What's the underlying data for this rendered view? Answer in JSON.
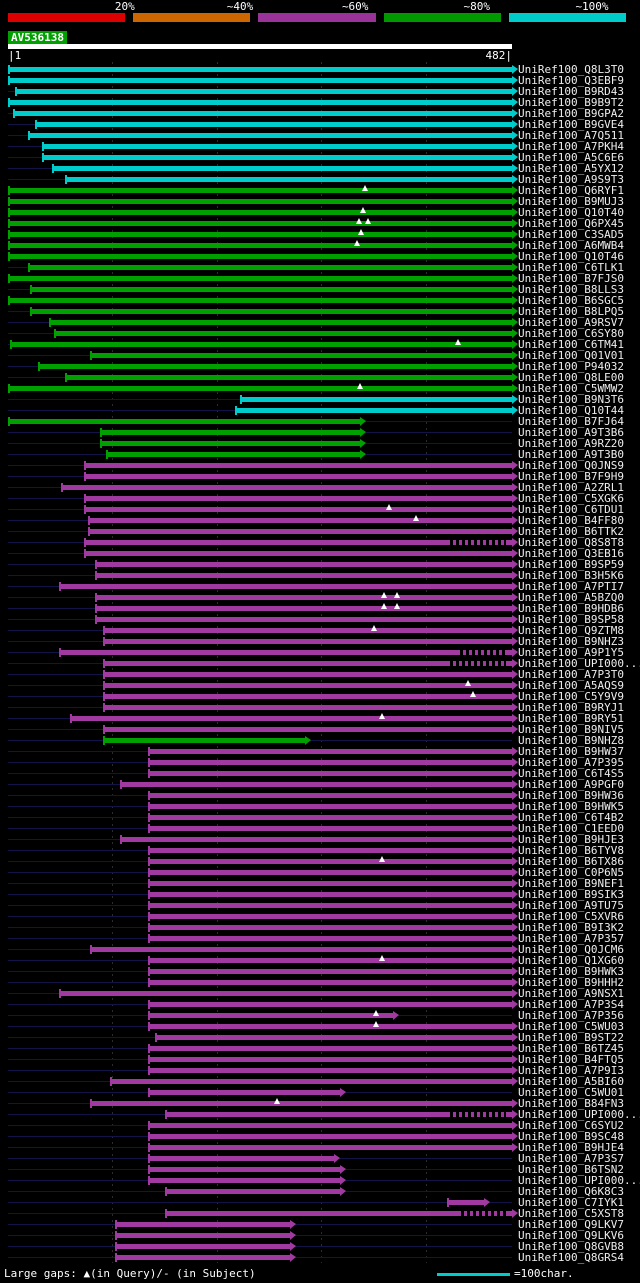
{
  "header": {
    "legend": {
      "labels": [
        "20%",
        "~40%",
        "~60%",
        "~80%",
        "~100%"
      ],
      "segments": [
        {
          "color": "#dd0000"
        },
        {
          "color": "#cc6600"
        },
        {
          "color": "#993399"
        },
        {
          "color": "#009900"
        },
        {
          "color": "#00cccc"
        }
      ]
    },
    "query": {
      "id": "AV536138",
      "ruler_start": "|1",
      "ruler_end": "482|"
    }
  },
  "footer": {
    "gaps_note": "Large gaps: ▲(in Query)/- (in Subject)",
    "scale_note": "=100char."
  },
  "colors": {
    "background": "#000000",
    "baseline": "#131347",
    "query_bar": "#ffffff",
    "label_text": "#eeeeee",
    "bars": {
      "cyan": "#00cccc",
      "green": "#00a000",
      "magenta": "#a03aa0"
    }
  },
  "chart_data": {
    "type": "bar",
    "orientation": "horizontal-span",
    "title": "AV536138",
    "x_range": [
      1,
      482
    ],
    "x_gridlines": [
      100,
      200,
      300,
      400
    ],
    "identity_colors": {
      "cyan": "~100%",
      "green": "~80%",
      "magenta": "~60%"
    },
    "rows": [
      {
        "id": "UniRef100_Q8L3T0",
        "color": "cyan",
        "start": 1,
        "end": 482
      },
      {
        "id": "UniRef100_Q3EBF9",
        "color": "cyan",
        "start": 1,
        "end": 482
      },
      {
        "id": "UniRef100_B9RD43",
        "color": "cyan",
        "start": 8,
        "end": 482
      },
      {
        "id": "UniRef100_B9B9T2",
        "color": "cyan",
        "start": 1,
        "end": 482
      },
      {
        "id": "UniRef100_B9GPA2",
        "color": "cyan",
        "start": 6,
        "end": 482
      },
      {
        "id": "UniRef100_B9GVE4",
        "color": "cyan",
        "start": 27,
        "end": 482
      },
      {
        "id": "UniRef100_A7Q511",
        "color": "cyan",
        "start": 20,
        "end": 482
      },
      {
        "id": "UniRef100_A7PKH4",
        "color": "cyan",
        "start": 33,
        "end": 482
      },
      {
        "id": "UniRef100_A5C6E6",
        "color": "cyan",
        "start": 33,
        "end": 482
      },
      {
        "id": "UniRef100_A5YX12",
        "color": "cyan",
        "start": 43,
        "end": 482
      },
      {
        "id": "UniRef100_A9S9T3",
        "color": "cyan",
        "start": 55,
        "end": 482
      },
      {
        "id": "UniRef100_Q6RYF1",
        "color": "green",
        "start": 1,
        "end": 482,
        "marks": [
          342
        ]
      },
      {
        "id": "UniRef100_B9MUJ3",
        "color": "green",
        "start": 1,
        "end": 482
      },
      {
        "id": "UniRef100_Q10T40",
        "color": "green",
        "start": 1,
        "end": 482,
        "marks": [
          340
        ]
      },
      {
        "id": "UniRef100_Q6PX45",
        "color": "green",
        "start": 1,
        "end": 482,
        "marks": [
          336,
          345
        ]
      },
      {
        "id": "UniRef100_C3SAD5",
        "color": "green",
        "start": 1,
        "end": 482,
        "marks": [
          338
        ]
      },
      {
        "id": "UniRef100_A6MWB4",
        "color": "green",
        "start": 1,
        "end": 482,
        "marks": [
          334
        ]
      },
      {
        "id": "UniRef100_Q10T46",
        "color": "green",
        "start": 1,
        "end": 482
      },
      {
        "id": "UniRef100_C6TLK1",
        "color": "green",
        "start": 20,
        "end": 482
      },
      {
        "id": "UniRef100_B7FJS0",
        "color": "green",
        "start": 1,
        "end": 482
      },
      {
        "id": "UniRef100_B8LLS3",
        "color": "green",
        "start": 22,
        "end": 482
      },
      {
        "id": "UniRef100_B6SGC5",
        "color": "green",
        "start": 1,
        "end": 482
      },
      {
        "id": "UniRef100_B8LPQ5",
        "color": "green",
        "start": 22,
        "end": 482
      },
      {
        "id": "UniRef100_A9RSV7",
        "color": "green",
        "start": 40,
        "end": 482
      },
      {
        "id": "UniRef100_C6SY80",
        "color": "green",
        "start": 45,
        "end": 482
      },
      {
        "id": "UniRef100_C6TM41",
        "color": "green",
        "start": 3,
        "end": 482,
        "marks": [
          430
        ]
      },
      {
        "id": "UniRef100_Q01V01",
        "color": "green",
        "start": 79,
        "end": 482
      },
      {
        "id": "UniRef100_P94032",
        "color": "green",
        "start": 30,
        "end": 482
      },
      {
        "id": "UniRef100_Q8LE00",
        "color": "green",
        "start": 55,
        "end": 482
      },
      {
        "id": "UniRef100_C5WMW2",
        "color": "green",
        "start": 1,
        "end": 482,
        "marks": [
          337
        ]
      },
      {
        "id": "UniRef100_B9N3T6",
        "color": "cyan",
        "start": 222,
        "end": 482
      },
      {
        "id": "UniRef100_Q10T44",
        "color": "cyan",
        "start": 218,
        "end": 482
      },
      {
        "id": "UniRef100_B7FJ64",
        "color": "green",
        "start": 1,
        "end": 337
      },
      {
        "id": "UniRef100_A9T3B6",
        "color": "green",
        "start": 89,
        "end": 337
      },
      {
        "id": "UniRef100_A9RZ20",
        "color": "green",
        "start": 89,
        "end": 337
      },
      {
        "id": "UniRef100_A9T3B0",
        "color": "green",
        "start": 95,
        "end": 337
      },
      {
        "id": "UniRef100_Q0JNS9",
        "color": "magenta",
        "start": 74,
        "end": 482
      },
      {
        "id": "UniRef100_B7F9H9",
        "color": "magenta",
        "start": 74,
        "end": 482
      },
      {
        "id": "UniRef100_A2ZRL1",
        "color": "magenta",
        "start": 52,
        "end": 482
      },
      {
        "id": "UniRef100_C5XGK6",
        "color": "magenta",
        "start": 74,
        "end": 482
      },
      {
        "id": "UniRef100_C6TDU1",
        "color": "magenta",
        "start": 74,
        "end": 482,
        "marks": [
          365
        ]
      },
      {
        "id": "UniRef100_B4FF80",
        "color": "magenta",
        "start": 77,
        "end": 482,
        "marks": [
          390
        ]
      },
      {
        "id": "UniRef100_B6TTK2",
        "color": "magenta",
        "start": 77,
        "end": 482
      },
      {
        "id": "UniRef100_Q8S8T8",
        "color": "magenta",
        "start": 74,
        "end": 482,
        "dash_from": 420
      },
      {
        "id": "UniRef100_Q3EB16",
        "color": "magenta",
        "start": 74,
        "end": 482
      },
      {
        "id": "UniRef100_B9SP59",
        "color": "magenta",
        "start": 84,
        "end": 482
      },
      {
        "id": "UniRef100_B3H5K6",
        "color": "magenta",
        "start": 84,
        "end": 482
      },
      {
        "id": "UniRef100_A7PTI7",
        "color": "magenta",
        "start": 50,
        "end": 482
      },
      {
        "id": "UniRef100_A5BZQ0",
        "color": "magenta",
        "start": 84,
        "end": 482,
        "marks": [
          360,
          372
        ]
      },
      {
        "id": "UniRef100_B9HDB6",
        "color": "magenta",
        "start": 84,
        "end": 482,
        "marks": [
          360,
          372
        ]
      },
      {
        "id": "UniRef100_B9SP58",
        "color": "magenta",
        "start": 84,
        "end": 482
      },
      {
        "id": "UniRef100_Q9ZTM8",
        "color": "magenta",
        "start": 92,
        "end": 482,
        "marks": [
          350
        ]
      },
      {
        "id": "UniRef100_B9NHZ3",
        "color": "magenta",
        "start": 92,
        "end": 482
      },
      {
        "id": "UniRef100_A9P1Y5",
        "color": "magenta",
        "start": 50,
        "end": 482,
        "dash_from": 430
      },
      {
        "id": "UniRef100_UPI000...",
        "color": "magenta",
        "start": 92,
        "end": 482,
        "dash_from": 420
      },
      {
        "id": "UniRef100_A7P3T0",
        "color": "magenta",
        "start": 92,
        "end": 482
      },
      {
        "id": "UniRef100_A5AQS9",
        "color": "magenta",
        "start": 92,
        "end": 482,
        "marks": [
          440
        ]
      },
      {
        "id": "UniRef100_C5Y9V9",
        "color": "magenta",
        "start": 92,
        "end": 482,
        "marks": [
          445
        ]
      },
      {
        "id": "UniRef100_B9RYJ1",
        "color": "magenta",
        "start": 92,
        "end": 482
      },
      {
        "id": "UniRef100_B9RY51",
        "color": "magenta",
        "start": 60,
        "end": 482,
        "marks": [
          358
        ]
      },
      {
        "id": "UniRef100_B9NIV5",
        "color": "magenta",
        "start": 92,
        "end": 482
      },
      {
        "id": "UniRef100_B9NHZ8",
        "color": "green",
        "start": 92,
        "end": 284
      },
      {
        "id": "UniRef100_B9HW37",
        "color": "magenta",
        "start": 135,
        "end": 482
      },
      {
        "id": "UniRef100_A7P395",
        "color": "magenta",
        "start": 135,
        "end": 482
      },
      {
        "id": "UniRef100_C6T4S5",
        "color": "magenta",
        "start": 135,
        "end": 482
      },
      {
        "id": "UniRef100_A9PGF0",
        "color": "magenta",
        "start": 108,
        "end": 482
      },
      {
        "id": "UniRef100_B9HW36",
        "color": "magenta",
        "start": 135,
        "end": 482
      },
      {
        "id": "UniRef100_B9HWK5",
        "color": "magenta",
        "start": 135,
        "end": 482
      },
      {
        "id": "UniRef100_C6T4B2",
        "color": "magenta",
        "start": 135,
        "end": 482
      },
      {
        "id": "UniRef100_C1EED0",
        "color": "magenta",
        "start": 135,
        "end": 482
      },
      {
        "id": "UniRef100_B9HJE3",
        "color": "magenta",
        "start": 108,
        "end": 482
      },
      {
        "id": "UniRef100_B6TYV8",
        "color": "magenta",
        "start": 135,
        "end": 482
      },
      {
        "id": "UniRef100_B6TX86",
        "color": "magenta",
        "start": 135,
        "end": 482,
        "marks": [
          358
        ]
      },
      {
        "id": "UniRef100_C0P6N5",
        "color": "magenta",
        "start": 135,
        "end": 482
      },
      {
        "id": "UniRef100_B9NEF1",
        "color": "magenta",
        "start": 135,
        "end": 482
      },
      {
        "id": "UniRef100_B9SIK3",
        "color": "magenta",
        "start": 135,
        "end": 482
      },
      {
        "id": "UniRef100_A9TU75",
        "color": "magenta",
        "start": 135,
        "end": 482
      },
      {
        "id": "UniRef100_C5XVR6",
        "color": "magenta",
        "start": 135,
        "end": 482
      },
      {
        "id": "UniRef100_B9I3K2",
        "color": "magenta",
        "start": 135,
        "end": 482
      },
      {
        "id": "UniRef100_A7P357",
        "color": "magenta",
        "start": 135,
        "end": 482
      },
      {
        "id": "UniRef100_Q0JCM6",
        "color": "magenta",
        "start": 79,
        "end": 482
      },
      {
        "id": "UniRef100_Q1XG60",
        "color": "magenta",
        "start": 135,
        "end": 482,
        "marks": [
          358
        ]
      },
      {
        "id": "UniRef100_B9HWK3",
        "color": "magenta",
        "start": 135,
        "end": 482
      },
      {
        "id": "UniRef100_B9HHH2",
        "color": "magenta",
        "start": 135,
        "end": 482
      },
      {
        "id": "UniRef100_A9NSX1",
        "color": "magenta",
        "start": 50,
        "end": 482
      },
      {
        "id": "UniRef100_A7P3S4",
        "color": "magenta",
        "start": 135,
        "end": 482
      },
      {
        "id": "UniRef100_A7P356",
        "color": "magenta",
        "start": 135,
        "end": 368,
        "marks": [
          352
        ]
      },
      {
        "id": "UniRef100_C5WU03",
        "color": "magenta",
        "start": 135,
        "end": 482,
        "marks": [
          352
        ]
      },
      {
        "id": "UniRef100_B9ST22",
        "color": "magenta",
        "start": 141,
        "end": 482
      },
      {
        "id": "UniRef100_B6TZ45",
        "color": "magenta",
        "start": 135,
        "end": 482
      },
      {
        "id": "UniRef100_B4FTQ5",
        "color": "magenta",
        "start": 135,
        "end": 482
      },
      {
        "id": "UniRef100_A7P9I3",
        "color": "magenta",
        "start": 135,
        "end": 482
      },
      {
        "id": "UniRef100_A5BI60",
        "color": "magenta",
        "start": 98,
        "end": 482
      },
      {
        "id": "UniRef100_C5WU01",
        "color": "magenta",
        "start": 135,
        "end": 318
      },
      {
        "id": "UniRef100_B84FN3",
        "color": "magenta",
        "start": 79,
        "end": 482,
        "marks": [
          258
        ]
      },
      {
        "id": "UniRef100_UPI000...",
        "color": "magenta",
        "start": 151,
        "end": 482,
        "dash_from": 420
      },
      {
        "id": "UniRef100_C6SYU2",
        "color": "magenta",
        "start": 135,
        "end": 482
      },
      {
        "id": "UniRef100_B9SC48",
        "color": "magenta",
        "start": 135,
        "end": 482
      },
      {
        "id": "UniRef100_B9HJE4",
        "color": "magenta",
        "start": 135,
        "end": 482
      },
      {
        "id": "UniRef100_A7P3S7",
        "color": "magenta",
        "start": 135,
        "end": 312
      },
      {
        "id": "UniRef100_B6TSN2",
        "color": "magenta",
        "start": 135,
        "end": 318
      },
      {
        "id": "UniRef100_UPI000...",
        "color": "magenta",
        "start": 135,
        "end": 318
      },
      {
        "id": "UniRef100_Q6K8C3",
        "color": "magenta",
        "start": 151,
        "end": 318
      },
      {
        "id": "UniRef100_C7IYK1",
        "color": "magenta",
        "start": 420,
        "end": 455
      },
      {
        "id": "UniRef100_C5XST8",
        "color": "magenta",
        "start": 151,
        "end": 482,
        "dash_from": 430
      },
      {
        "id": "UniRef100_Q9LKV7",
        "color": "magenta",
        "start": 103,
        "end": 270
      },
      {
        "id": "UniRef100_Q9LKV6",
        "color": "magenta",
        "start": 103,
        "end": 270
      },
      {
        "id": "UniRef100_Q8GVB8",
        "color": "magenta",
        "start": 103,
        "end": 270
      },
      {
        "id": "UniRef100_Q8GRS4",
        "color": "magenta",
        "start": 103,
        "end": 270
      }
    ]
  }
}
